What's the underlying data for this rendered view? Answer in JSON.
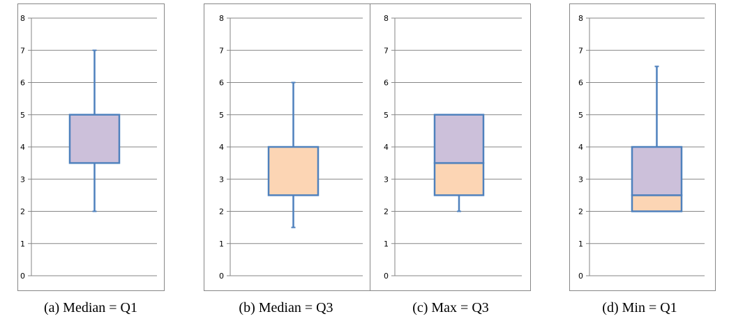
{
  "chart_data": [
    {
      "type": "box",
      "caption": "(a) Median = Q1",
      "ylim": [
        0,
        8
      ],
      "yticks": [
        "0",
        "1",
        "2",
        "3",
        "4",
        "5",
        "6",
        "7",
        "8"
      ],
      "grid": true,
      "box": {
        "min": 2,
        "q1": 3.5,
        "median": 3.5,
        "q3": 5,
        "max": 7
      }
    },
    {
      "type": "box",
      "caption": "(b) Median = Q3",
      "ylim": [
        0,
        8
      ],
      "yticks": [
        "0",
        "1",
        "2",
        "3",
        "4",
        "5",
        "6",
        "7",
        "8"
      ],
      "grid": true,
      "box": {
        "min": 1.5,
        "q1": 2.5,
        "median": 4,
        "q3": 4,
        "max": 6
      }
    },
    {
      "type": "box",
      "caption": "(c) Max = Q3",
      "ylim": [
        0,
        8
      ],
      "yticks": [
        "0",
        "1",
        "2",
        "3",
        "4",
        "5",
        "6",
        "7",
        "8"
      ],
      "grid": true,
      "box": {
        "min": 2,
        "q1": 2.5,
        "median": 3.5,
        "q3": 5,
        "max": 5
      }
    },
    {
      "type": "box",
      "caption": "(d) Min = Q1",
      "ylim": [
        0,
        8
      ],
      "yticks": [
        "0",
        "1",
        "2",
        "3",
        "4",
        "5",
        "6",
        "7",
        "8"
      ],
      "grid": true,
      "box": {
        "min": 2,
        "q1": 2,
        "median": 2.5,
        "q3": 4,
        "max": 6.5
      }
    }
  ],
  "colors": {
    "upper_box": "#ccc0da",
    "lower_box": "#fcd5b4",
    "box_stroke": "#4f81bd",
    "grid": "#868686",
    "frame": "#868686"
  }
}
